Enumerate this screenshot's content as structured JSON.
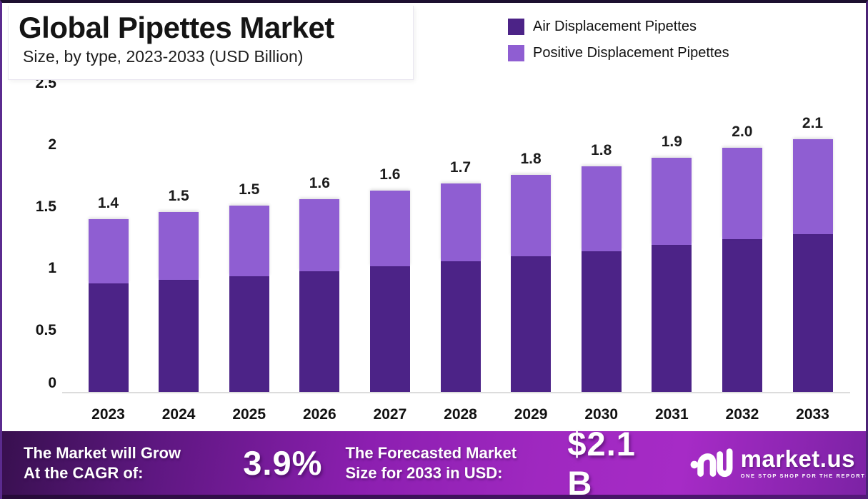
{
  "header": {
    "title": "Global Pipettes Market",
    "subtitle": "Size, by type, 2023-2033 (USD Billion)"
  },
  "colors": {
    "air_series": "#4c2387",
    "positive_series": "#8f5ed2",
    "banner_bright": "#a62bc6",
    "banner_dark": "#38104f"
  },
  "chart_data": {
    "type": "bar",
    "stacked": true,
    "title": "Global Pipettes Market Size, by type, 2023-2033 (USD Billion)",
    "categories": [
      "2023",
      "2024",
      "2025",
      "2026",
      "2027",
      "2028",
      "2029",
      "2030",
      "2031",
      "2032",
      "2033"
    ],
    "series": [
      {
        "name": "Air Displacement Pipettes",
        "color": "#4c2387",
        "values": [
          0.88,
          0.91,
          0.94,
          0.98,
          1.02,
          1.06,
          1.1,
          1.14,
          1.19,
          1.24,
          1.28
        ]
      },
      {
        "name": "Positive Displacement Pipettes",
        "color": "#8f5ed2",
        "values": [
          0.52,
          0.55,
          0.57,
          0.58,
          0.61,
          0.63,
          0.66,
          0.69,
          0.71,
          0.74,
          0.77
        ]
      }
    ],
    "total_labels": [
      "1.4",
      "1.5",
      "1.5",
      "1.6",
      "1.6",
      "1.7",
      "1.8",
      "1.8",
      "1.9",
      "2.0",
      "2.1"
    ],
    "xlabel": "",
    "ylabel": "USD Billion",
    "ylim": [
      0,
      2.5
    ],
    "yticks": [
      "0",
      "0.5",
      "1",
      "1.5",
      "2",
      "2.5"
    ],
    "grid": false,
    "legend_position": "top-right"
  },
  "banner": {
    "cagr_label_line1": "The Market will Grow",
    "cagr_label_line2": "At the CAGR of:",
    "cagr_value": "3.9%",
    "forecast_label_line1": "The Forecasted Market",
    "forecast_label_line2": "Size for 2033 in USD:",
    "forecast_value": "$2.1 B",
    "logo_name": "market.us",
    "logo_tagline": "ONE STOP SHOP FOR THE REPORTS"
  }
}
